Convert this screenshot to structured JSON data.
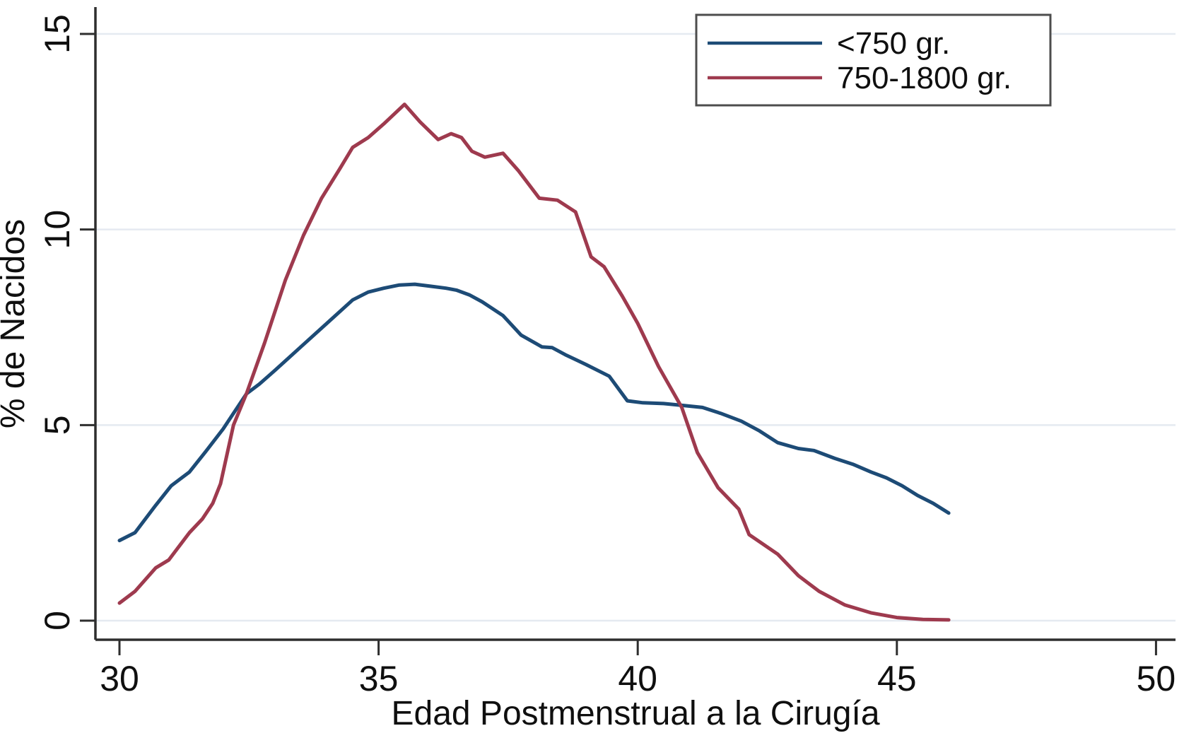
{
  "figure": {
    "background": "#ffffff"
  },
  "chart_data": {
    "type": "line",
    "title": "",
    "xlabel": "Edad Postmenstrual a la Cirugía",
    "ylabel": "% de Nacidos",
    "xlim": [
      30,
      50
    ],
    "ylim": [
      0,
      15
    ],
    "x_ticks": [
      30,
      35,
      40,
      45,
      50
    ],
    "y_ticks": [
      0,
      5,
      10,
      15
    ],
    "grid": "horizontal",
    "grid_color": "#e5eaf1",
    "axis_color": "#2e2e2e",
    "legend": {
      "position": "top-right",
      "border_color": "#4d4d4d",
      "background": "#ffffff"
    },
    "series": [
      {
        "name": "<750 gr.",
        "color": "#1d4b76",
        "points": [
          [
            30,
            2.05
          ],
          [
            30.3,
            2.25
          ],
          [
            30.7,
            2.95
          ],
          [
            31,
            3.45
          ],
          [
            31.35,
            3.8
          ],
          [
            31.65,
            4.3
          ],
          [
            32,
            4.9
          ],
          [
            32.45,
            5.8
          ],
          [
            32.7,
            6.05
          ],
          [
            33,
            6.4
          ],
          [
            33.5,
            7.0
          ],
          [
            34,
            7.6
          ],
          [
            34.5,
            8.2
          ],
          [
            34.8,
            8.4
          ],
          [
            35.1,
            8.5
          ],
          [
            35.4,
            8.58
          ],
          [
            35.7,
            8.6
          ],
          [
            36,
            8.55
          ],
          [
            36.3,
            8.5
          ],
          [
            36.5,
            8.45
          ],
          [
            36.75,
            8.33
          ],
          [
            37,
            8.15
          ],
          [
            37.4,
            7.8
          ],
          [
            37.75,
            7.3
          ],
          [
            38.15,
            7.0
          ],
          [
            38.35,
            6.98
          ],
          [
            38.6,
            6.8
          ],
          [
            39,
            6.55
          ],
          [
            39.45,
            6.25
          ],
          [
            39.8,
            5.62
          ],
          [
            40.1,
            5.57
          ],
          [
            40.5,
            5.55
          ],
          [
            40.9,
            5.5
          ],
          [
            41.25,
            5.45
          ],
          [
            41.6,
            5.3
          ],
          [
            42,
            5.1
          ],
          [
            42.35,
            4.85
          ],
          [
            42.7,
            4.55
          ],
          [
            43.1,
            4.4
          ],
          [
            43.4,
            4.35
          ],
          [
            43.8,
            4.15
          ],
          [
            44.15,
            4.0
          ],
          [
            44.5,
            3.8
          ],
          [
            44.8,
            3.65
          ],
          [
            45.1,
            3.45
          ],
          [
            45.4,
            3.2
          ],
          [
            45.7,
            3.0
          ],
          [
            46,
            2.75
          ]
        ]
      },
      {
        "name": "750-1800 gr.",
        "color": "#9e3a4e",
        "points": [
          [
            30,
            0.45
          ],
          [
            30.3,
            0.75
          ],
          [
            30.7,
            1.35
          ],
          [
            30.95,
            1.55
          ],
          [
            31.35,
            2.25
          ],
          [
            31.6,
            2.6
          ],
          [
            31.8,
            3.0
          ],
          [
            31.95,
            3.5
          ],
          [
            32.2,
            5.0
          ],
          [
            32.45,
            5.8
          ],
          [
            32.8,
            7.1
          ],
          [
            33.2,
            8.7
          ],
          [
            33.55,
            9.85
          ],
          [
            33.9,
            10.8
          ],
          [
            34.25,
            11.55
          ],
          [
            34.5,
            12.1
          ],
          [
            34.8,
            12.35
          ],
          [
            35.1,
            12.7
          ],
          [
            35.5,
            13.2
          ],
          [
            35.8,
            12.75
          ],
          [
            36.15,
            12.3
          ],
          [
            36.4,
            12.45
          ],
          [
            36.6,
            12.35
          ],
          [
            36.8,
            12.0
          ],
          [
            37.05,
            11.85
          ],
          [
            37.4,
            11.95
          ],
          [
            37.7,
            11.5
          ],
          [
            38.1,
            10.8
          ],
          [
            38.45,
            10.75
          ],
          [
            38.8,
            10.45
          ],
          [
            39.1,
            9.3
          ],
          [
            39.35,
            9.05
          ],
          [
            39.7,
            8.3
          ],
          [
            40,
            7.6
          ],
          [
            40.4,
            6.5
          ],
          [
            40.85,
            5.45
          ],
          [
            41.15,
            4.3
          ],
          [
            41.55,
            3.4
          ],
          [
            41.95,
            2.85
          ],
          [
            42.15,
            2.2
          ],
          [
            42.7,
            1.7
          ],
          [
            43.1,
            1.15
          ],
          [
            43.5,
            0.75
          ],
          [
            44,
            0.4
          ],
          [
            44.5,
            0.2
          ],
          [
            45,
            0.08
          ],
          [
            45.5,
            0.03
          ],
          [
            46,
            0.02
          ]
        ]
      }
    ]
  }
}
